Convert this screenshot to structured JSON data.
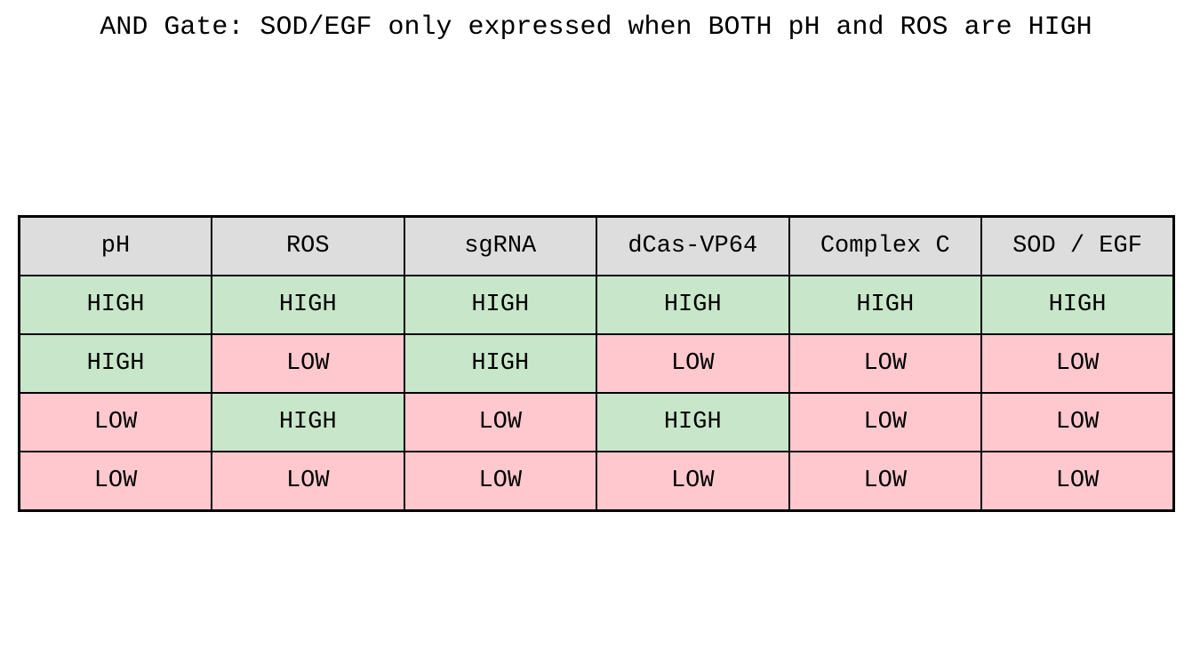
{
  "title": "AND Gate: SOD/EGF only expressed when BOTH pH and ROS are HIGH",
  "colors": {
    "background": "#ffffff",
    "header_bg": "#dddddd",
    "high_bg": "#c8e6c9",
    "low_bg": "#ffc8ce",
    "border": "#000000",
    "text": "#000000"
  },
  "chart_data": {
    "type": "table",
    "title": "AND Gate: SOD/EGF only expressed when BOTH pH and ROS are HIGH",
    "columns": [
      "pH",
      "ROS",
      "sgRNA",
      "dCas-VP64",
      "Complex C",
      "SOD / EGF"
    ],
    "rows": [
      [
        "HIGH",
        "HIGH",
        "HIGH",
        "HIGH",
        "HIGH",
        "HIGH"
      ],
      [
        "HIGH",
        "LOW",
        "HIGH",
        "LOW",
        "LOW",
        "LOW"
      ],
      [
        "LOW",
        "HIGH",
        "LOW",
        "HIGH",
        "LOW",
        "LOW"
      ],
      [
        "LOW",
        "LOW",
        "LOW",
        "LOW",
        "LOW",
        "LOW"
      ]
    ],
    "cell_color_rule": {
      "HIGH": "#c8e6c9",
      "LOW": "#ffc8ce"
    },
    "header_fill": "#dddddd",
    "grid": true,
    "legend_position": "none"
  }
}
